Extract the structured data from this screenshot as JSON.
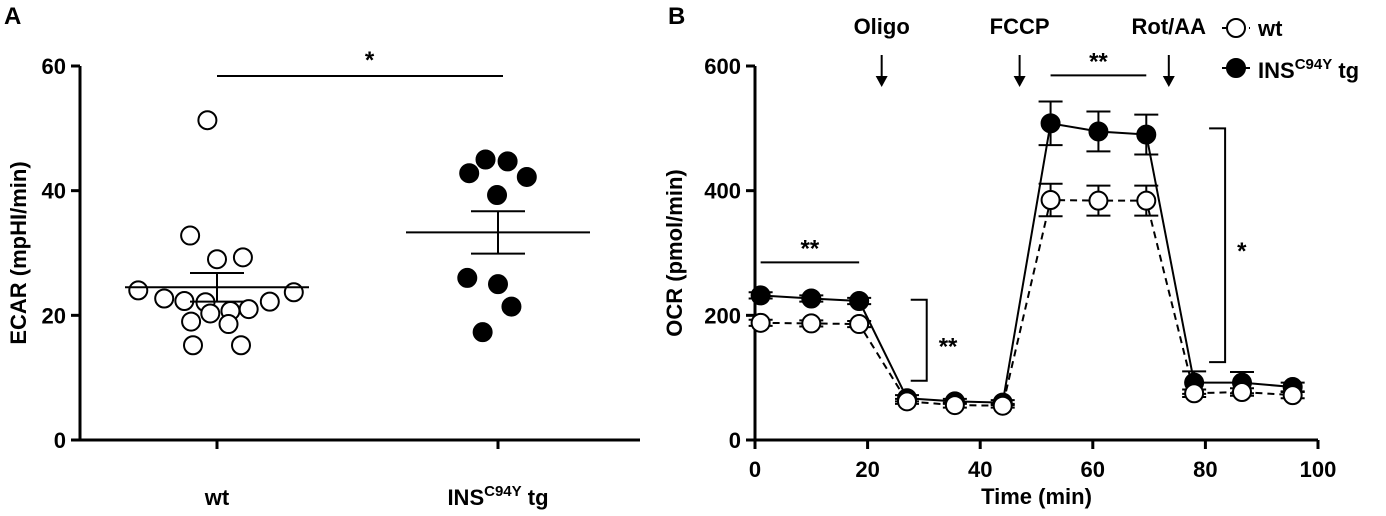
{
  "chart_data": [
    {
      "panel": "A",
      "type": "scatter",
      "ylabel": "ECAR (mpHI/min)",
      "ylim": [
        0,
        60
      ],
      "yticks": [
        "0",
        "20",
        "40",
        "60"
      ],
      "categories": [
        {
          "label_main": "wt",
          "label_sup": "",
          "label_tail": ""
        },
        {
          "label_main": "INS",
          "label_sup": "C94Y",
          "label_tail": " tg"
        }
      ],
      "significance": "*",
      "series": [
        {
          "fill": "#ffffff",
          "points": [
            {
              "dx": -0.1,
              "y": 51.3
            },
            {
              "dx": -0.28,
              "y": 32.8
            },
            {
              "dx": 0.0,
              "y": 29.0
            },
            {
              "dx": 0.27,
              "y": 29.3
            },
            {
              "dx": -0.82,
              "y": 24.0
            },
            {
              "dx": -0.55,
              "y": 22.7
            },
            {
              "dx": -0.34,
              "y": 22.3
            },
            {
              "dx": -0.12,
              "y": 22.1
            },
            {
              "dx": 0.14,
              "y": 20.7
            },
            {
              "dx": 0.33,
              "y": 21.0
            },
            {
              "dx": 0.55,
              "y": 22.2
            },
            {
              "dx": 0.8,
              "y": 23.7
            },
            {
              "dx": -0.27,
              "y": 19.0
            },
            {
              "dx": -0.07,
              "y": 20.3
            },
            {
              "dx": 0.12,
              "y": 18.6
            },
            {
              "dx": -0.25,
              "y": 15.2
            },
            {
              "dx": 0.25,
              "y": 15.2
            }
          ],
          "mean": 24.5,
          "sem": 2.3
        },
        {
          "fill": "#000000",
          "points": [
            {
              "dx": -0.3,
              "y": 42.8
            },
            {
              "dx": -0.13,
              "y": 45.0
            },
            {
              "dx": 0.1,
              "y": 44.7
            },
            {
              "dx": 0.3,
              "y": 42.2
            },
            {
              "dx": -0.01,
              "y": 39.3
            },
            {
              "dx": -0.32,
              "y": 26.0
            },
            {
              "dx": 0.0,
              "y": 25.0
            },
            {
              "dx": 0.14,
              "y": 21.4
            },
            {
              "dx": -0.16,
              "y": 17.3
            }
          ],
          "mean": 33.3,
          "sem": 3.4
        }
      ]
    },
    {
      "panel": "B",
      "type": "line",
      "xlabel": "Time (min)",
      "ylabel": "OCR (pmol/min)",
      "xlim": [
        0,
        100
      ],
      "ylim": [
        0,
        600
      ],
      "xticks": [
        "0",
        "20",
        "40",
        "60",
        "80",
        "100"
      ],
      "yticks": [
        "0",
        "200",
        "400",
        "600"
      ],
      "x": [
        1,
        10,
        18.5,
        27,
        35.5,
        44,
        52.5,
        61,
        69.5,
        78,
        86.5,
        95.5
      ],
      "series": [
        {
          "name": "wt",
          "fill": "#ffffff",
          "dashed": true,
          "values": [
            188,
            187,
            186,
            62,
            56,
            55,
            385,
            384,
            384,
            75,
            77,
            72
          ],
          "err": [
            5,
            5,
            5,
            4,
            4,
            3,
            26,
            24,
            24,
            6,
            6,
            5
          ]
        },
        {
          "name_main": "INS",
          "name_sup": "C94Y",
          "name_tail": " tg",
          "fill": "#000000",
          "dashed": false,
          "values": [
            232,
            227,
            223,
            67,
            62,
            60,
            508,
            495,
            490,
            92,
            92,
            85
          ],
          "err": [
            5,
            5,
            5,
            5,
            4,
            4,
            35,
            32,
            32,
            18,
            17,
            7
          ]
        }
      ],
      "injections": [
        {
          "label": "Oligo",
          "x": 22.5
        },
        {
          "label": "FCCP",
          "x": 47
        },
        {
          "label": "Rot/AA",
          "x": 73.5
        }
      ],
      "significance": [
        {
          "text": "**",
          "from_x": 1,
          "to_x": 18.5,
          "at_y": 285
        },
        {
          "text": "**",
          "from_x": 52.5,
          "to_x": 69.5,
          "at_y": 585
        },
        {
          "text": "**",
          "bracket_x": 30.5,
          "from_y": 225,
          "to_y": 95
        },
        {
          "text": "*",
          "bracket_x": 83.5,
          "from_y": 500,
          "to_y": 125
        }
      ]
    }
  ],
  "panel_labels": [
    "A",
    "B"
  ]
}
